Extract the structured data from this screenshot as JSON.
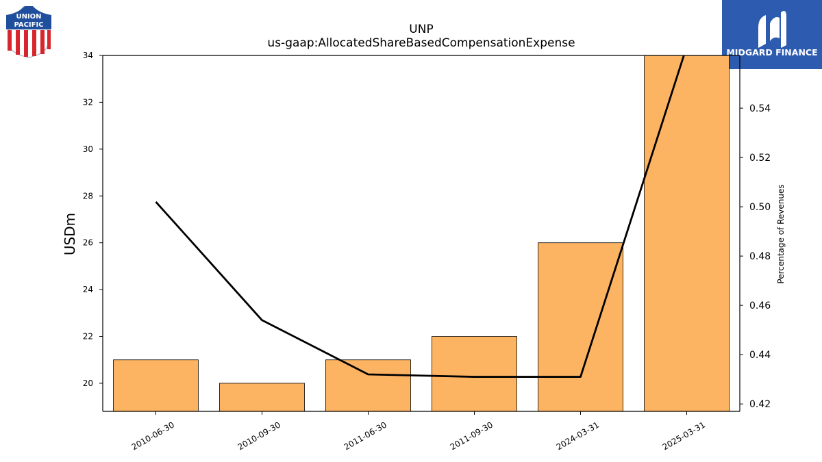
{
  "company_logo": {
    "line1": "UNION",
    "line2": "PACIFIC",
    "colors": {
      "blue": "#1f4e9c",
      "red": "#d7262e"
    }
  },
  "brand": {
    "name": "MIDGARD FINANCE",
    "bg_color": "#2d5bb0"
  },
  "chart_data": {
    "type": "bar",
    "title": "UNP",
    "subtitle": "us-gaap:AllocatedShareBasedCompensationExpense",
    "categories": [
      "2010-06-30",
      "2010-09-30",
      "2011-06-30",
      "2011-09-30",
      "2024-03-31",
      "2025-03-31"
    ],
    "series": [
      {
        "values": [
          21,
          20,
          21,
          22,
          26,
          34
        ],
        "axis": "left",
        "color": "#fdb462"
      },
      {
        "type": "line",
        "values": [
          0.502,
          0.454,
          0.432,
          0.431,
          0.431,
          0.565
        ],
        "axis": "right",
        "color": "#000000"
      }
    ],
    "ylabel": "USDm",
    "ylabel_right": "Percentage of Revenues",
    "ylim": [
      18.8,
      34
    ],
    "ylim_right": [
      0.417,
      0.5614
    ],
    "yticks": [
      20,
      22,
      24,
      26,
      28,
      30,
      32,
      34
    ],
    "yticks_right": [
      0.42,
      0.44,
      0.46,
      0.48,
      0.5,
      0.52,
      0.54
    ],
    "grid": false
  }
}
